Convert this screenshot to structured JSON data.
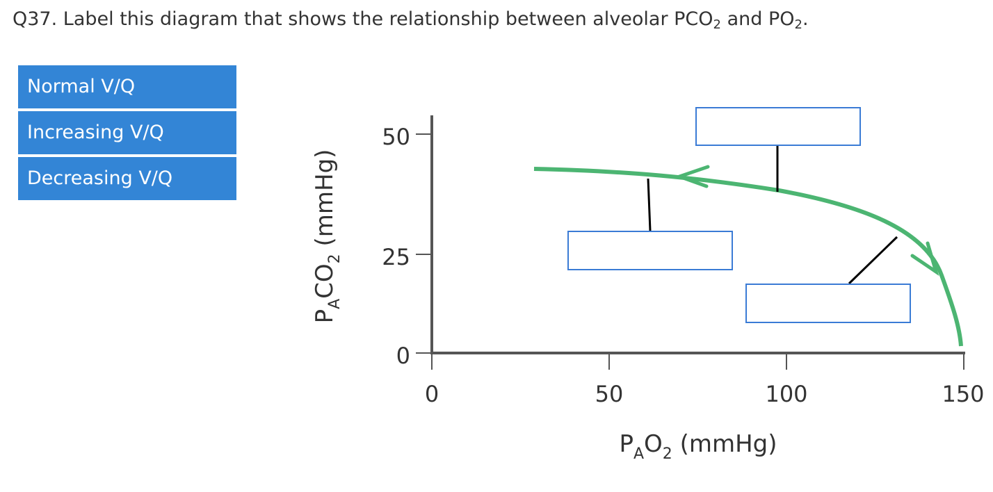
{
  "question": {
    "text_main": "Q37. Label this diagram that shows the relationship between alveolar PCO",
    "sub1": "2",
    "and": " and PO",
    "sub2": "2",
    "end": "."
  },
  "answer_bank": [
    {
      "label": "Normal V/Q"
    },
    {
      "label": "Increasing V/Q"
    },
    {
      "label": "Decreasing V/Q"
    }
  ],
  "diagram": {
    "curve_color": "#4cb572",
    "x_axis": {
      "label_p": "P",
      "label_sub_a": "A",
      "label_o": "O",
      "label_sub_2": "2",
      "label_unit": " (mmHg)",
      "range": [
        0,
        150
      ],
      "ticks": [
        "0",
        "50",
        "100",
        "150"
      ]
    },
    "y_axis": {
      "label_p": "P",
      "label_sub_a": "A",
      "label_co": "CO",
      "label_sub_2": "2",
      "label_unit": " (mmHg)",
      "range": [
        0,
        50
      ],
      "ticks": [
        "0",
        "25",
        "50"
      ]
    },
    "drop_targets": [
      "top-label-box",
      "middle-label-box",
      "right-label-box"
    ]
  }
}
